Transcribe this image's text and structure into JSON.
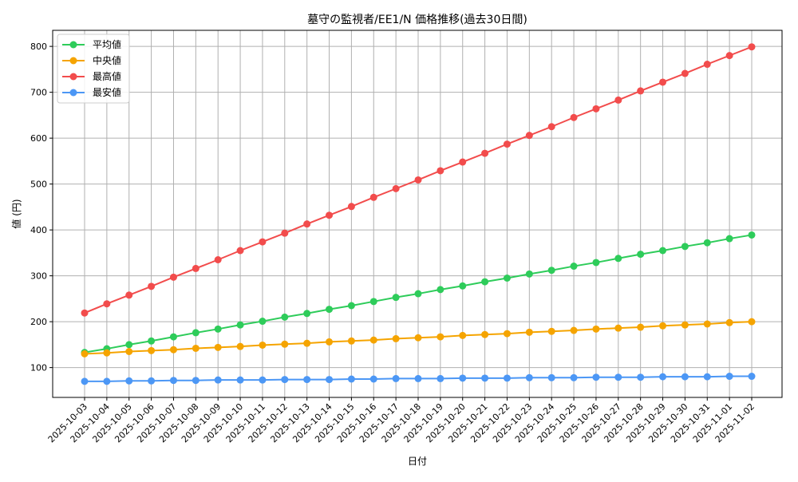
{
  "chart_data": {
    "type": "line",
    "title": "墓守の監視者/EE1/N 価格推移(過去30日間)",
    "xlabel": "日付",
    "ylabel": "値 (円)",
    "ylim": [
      35,
      835
    ],
    "yticks": [
      100,
      200,
      300,
      400,
      500,
      600,
      700,
      800
    ],
    "grid": true,
    "legend_position": "top-left",
    "categories": [
      "2025-10-03",
      "2025-10-04",
      "2025-10-05",
      "2025-10-06",
      "2025-10-07",
      "2025-10-08",
      "2025-10-09",
      "2025-10-10",
      "2025-10-11",
      "2025-10-12",
      "2025-10-13",
      "2025-10-14",
      "2025-10-15",
      "2025-10-16",
      "2025-10-17",
      "2025-10-18",
      "2025-10-19",
      "2025-10-20",
      "2025-10-21",
      "2025-10-22",
      "2025-10-23",
      "2025-10-24",
      "2025-10-25",
      "2025-10-26",
      "2025-10-27",
      "2025-10-28",
      "2025-10-29",
      "2025-10-30",
      "2025-10-31",
      "2025-11-01",
      "2025-11-02"
    ],
    "series": [
      {
        "name": "平均値",
        "color": "#2ecc5a",
        "values": [
          133,
          141,
          150,
          158,
          167,
          176,
          184,
          193,
          201,
          210,
          218,
          227,
          235,
          244,
          253,
          261,
          270,
          278,
          287,
          295,
          304,
          312,
          321,
          329,
          338,
          347,
          355,
          364,
          372,
          381,
          389
        ]
      },
      {
        "name": "中央値",
        "color": "#f5a400",
        "values": [
          130,
          132,
          135,
          137,
          139,
          142,
          144,
          146,
          149,
          151,
          153,
          156,
          158,
          160,
          163,
          165,
          167,
          170,
          172,
          174,
          177,
          179,
          181,
          184,
          186,
          188,
          191,
          193,
          195,
          198,
          200
        ]
      },
      {
        "name": "最高値",
        "color": "#f24c4c",
        "values": [
          219,
          239,
          258,
          277,
          297,
          316,
          335,
          355,
          374,
          393,
          413,
          432,
          451,
          471,
          490,
          509,
          529,
          548,
          567,
          587,
          606,
          625,
          645,
          664,
          683,
          703,
          722,
          741,
          761,
          780,
          799
        ]
      },
      {
        "name": "最安値",
        "color": "#4c97f5",
        "values": [
          70,
          70,
          71,
          71,
          72,
          72,
          73,
          73,
          73,
          74,
          74,
          74,
          75,
          75,
          76,
          76,
          76,
          77,
          77,
          77,
          78,
          78,
          78,
          79,
          79,
          79,
          80,
          80,
          80,
          81,
          81
        ]
      }
    ]
  }
}
